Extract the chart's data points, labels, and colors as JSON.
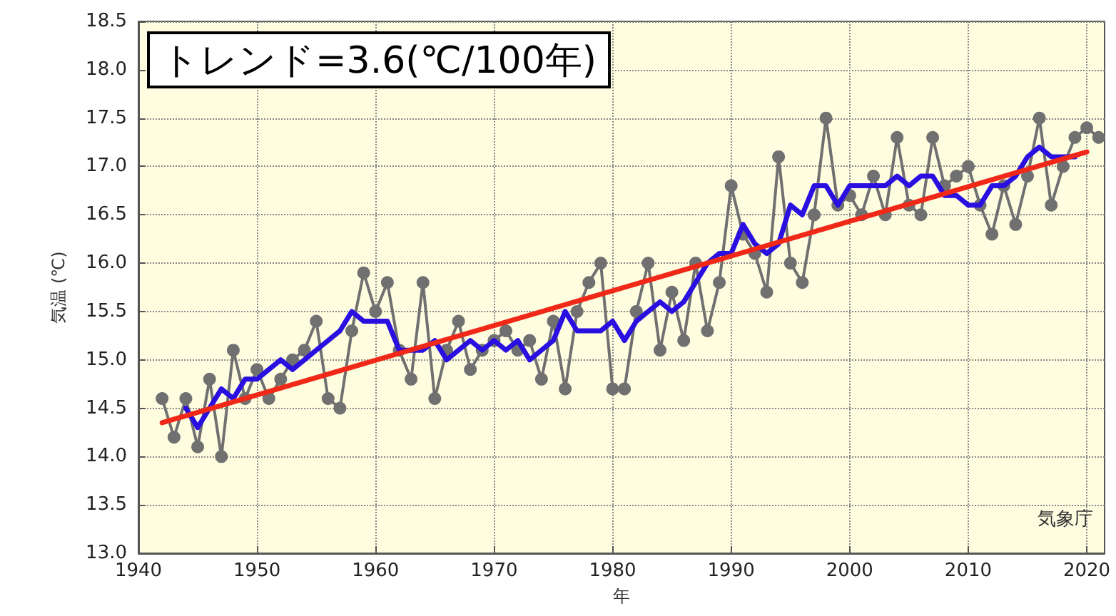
{
  "chart_data": {
    "type": "line",
    "xlabel": "年",
    "ylabel": "気温 (℃)",
    "annotations": [
      "トレンド=3.6(℃/100年)",
      "気象庁"
    ],
    "xlim": [
      1940,
      2021.5
    ],
    "xticks": [
      1940,
      1950,
      1960,
      1970,
      1980,
      1990,
      2000,
      2010,
      2020
    ],
    "ylim": [
      13.0,
      18.5
    ],
    "yticks": [
      {
        "value": 13.0,
        "label": "13.0"
      },
      {
        "value": 13.5,
        "label": "13.5"
      },
      {
        "value": 14.0,
        "label": "14.0"
      },
      {
        "value": 14.5,
        "label": "14.5"
      },
      {
        "value": 15.0,
        "label": "15.0"
      },
      {
        "value": 15.5,
        "label": "15.5"
      },
      {
        "value": 16.0,
        "label": "16.0"
      },
      {
        "value": 16.5,
        "label": "16.5"
      },
      {
        "value": 17.0,
        "label": "17.0"
      },
      {
        "value": 17.5,
        "label": "17.5"
      },
      {
        "value": 18.0,
        "label": "18.0"
      },
      {
        "value": 18.5,
        "label": "18.5"
      }
    ],
    "grid": true,
    "series": [
      {
        "color": "#707070",
        "marker": "circle",
        "x": [
          1942,
          1943,
          1944,
          1945,
          1946,
          1947,
          1948,
          1949,
          1950,
          1951,
          1952,
          1953,
          1954,
          1955,
          1956,
          1957,
          1958,
          1959,
          1960,
          1961,
          1962,
          1963,
          1964,
          1965,
          1966,
          1967,
          1968,
          1969,
          1970,
          1971,
          1972,
          1973,
          1974,
          1975,
          1976,
          1977,
          1978,
          1979,
          1980,
          1981,
          1982,
          1983,
          1984,
          1985,
          1986,
          1987,
          1988,
          1989,
          1990,
          1991,
          1992,
          1993,
          1994,
          1995,
          1996,
          1997,
          1998,
          1999,
          2000,
          2001,
          2002,
          2003,
          2004,
          2005,
          2006,
          2007,
          2008,
          2009,
          2010,
          2011,
          2012,
          2013,
          2014,
          2015,
          2016,
          2017,
          2018,
          2019,
          2020,
          2021
        ],
        "values": [
          14.6,
          14.2,
          14.6,
          14.1,
          14.8,
          14.0,
          15.1,
          14.6,
          14.9,
          14.6,
          14.8,
          15.0,
          15.1,
          15.4,
          14.6,
          14.5,
          15.3,
          15.9,
          15.5,
          15.8,
          15.1,
          14.8,
          15.8,
          14.6,
          15.1,
          15.4,
          14.9,
          15.1,
          15.2,
          15.3,
          15.1,
          15.2,
          14.8,
          15.4,
          14.7,
          15.5,
          15.8,
          16.0,
          14.7,
          14.7,
          15.5,
          16.0,
          15.1,
          15.7,
          15.2,
          16.0,
          15.3,
          15.8,
          16.8,
          16.3,
          16.1,
          15.7,
          17.1,
          16.0,
          15.8,
          16.5,
          17.5,
          16.6,
          16.7,
          16.5,
          16.9,
          16.5,
          17.3,
          16.6,
          16.5,
          17.3,
          16.8,
          16.9,
          17.0,
          16.6,
          16.3,
          16.8,
          16.4,
          16.9,
          17.5,
          16.6,
          17.0,
          17.3,
          17.4,
          17.3
        ]
      },
      {
        "color": "#2a10e0",
        "marker": "none",
        "x": [
          1944,
          1945,
          1946,
          1947,
          1948,
          1949,
          1950,
          1951,
          1952,
          1953,
          1954,
          1955,
          1956,
          1957,
          1958,
          1959,
          1960,
          1961,
          1962,
          1963,
          1964,
          1965,
          1966,
          1967,
          1968,
          1969,
          1970,
          1971,
          1972,
          1973,
          1974,
          1975,
          1976,
          1977,
          1978,
          1979,
          1980,
          1981,
          1982,
          1983,
          1984,
          1985,
          1986,
          1987,
          1988,
          1989,
          1990,
          1991,
          1992,
          1993,
          1994,
          1995,
          1996,
          1997,
          1998,
          1999,
          2000,
          2001,
          2002,
          2003,
          2004,
          2005,
          2006,
          2007,
          2008,
          2009,
          2010,
          2011,
          2012,
          2013,
          2014,
          2015,
          2016,
          2017,
          2018,
          2019
        ],
        "values": [
          14.5,
          14.3,
          14.5,
          14.7,
          14.6,
          14.8,
          14.8,
          14.9,
          15.0,
          14.9,
          15.0,
          15.1,
          15.2,
          15.3,
          15.5,
          15.4,
          15.4,
          15.4,
          15.1,
          15.1,
          15.1,
          15.2,
          15.0,
          15.1,
          15.2,
          15.1,
          15.2,
          15.1,
          15.2,
          15.0,
          15.1,
          15.2,
          15.5,
          15.3,
          15.3,
          15.3,
          15.4,
          15.2,
          15.4,
          15.5,
          15.6,
          15.5,
          15.6,
          15.8,
          16.0,
          16.1,
          16.1,
          16.4,
          16.2,
          16.1,
          16.2,
          16.6,
          16.5,
          16.8,
          16.8,
          16.6,
          16.8,
          16.8,
          16.8,
          16.8,
          16.9,
          16.8,
          16.9,
          16.9,
          16.7,
          16.7,
          16.6,
          16.6,
          16.8,
          16.8,
          16.9,
          17.1,
          17.2,
          17.1,
          17.1,
          17.1
        ]
      },
      {
        "color": "#f02818",
        "marker": "none",
        "x": [
          1942,
          2020
        ],
        "values": [
          14.35,
          17.15
        ]
      }
    ]
  }
}
